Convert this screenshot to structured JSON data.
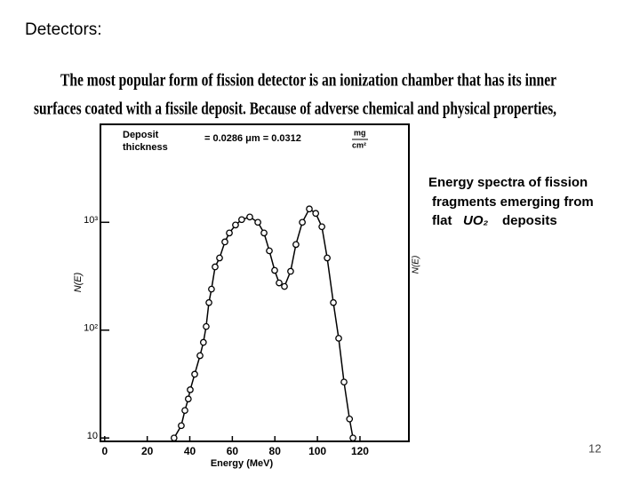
{
  "slide_title": "Detectors:",
  "scanned_text": [
    "The most popular form of fission detector is an ionization chamber that has its inner",
    "surfaces coated with a fissile deposit. Because of adverse chemical and physical properties,"
  ],
  "caption": {
    "lines": [
      "Energy spectra of fission",
      "fragments emerging from"
    ],
    "last_line_start": "flat",
    "formula": "UO₂",
    "last_line_end": "deposits"
  },
  "page_number": "12",
  "chart_data": {
    "type": "line",
    "x_label": "Energy (MeV)",
    "y_label": "N(E)",
    "annotation": [
      "Deposit",
      "thickness",
      "= 0.0286 μm = 0.0312",
      "mg",
      "cm²"
    ],
    "x": [
      32.6,
      36,
      37.7,
      39.3,
      40.2,
      42.3,
      44.8,
      46.4,
      47.7,
      49,
      50.2,
      51.9,
      54,
      56.5,
      58.6,
      61.5,
      64.4,
      68.2,
      72,
      74.9,
      77.4,
      79.9,
      82,
      84.5,
      87.4,
      89.9,
      92.9,
      96.2,
      99.2,
      102.1,
      104.6,
      107.5,
      110,
      112.5,
      115.1,
      116.7
    ],
    "series": [
      {
        "color": "#000000",
        "values": [
          10,
          13,
          18,
          23,
          28,
          39,
          58,
          77,
          108,
          180,
          240,
          386,
          467,
          658,
          796,
          944,
          1059,
          1120,
          1000,
          796,
          544,
          358,
          274,
          254,
          351,
          622,
          1000,
          1330,
          1210,
          910,
          467,
          180,
          84,
          33,
          15,
          10
        ]
      }
    ],
    "xlim": [
      -2,
      143
    ],
    "ylim": [
      9.3,
      8100
    ],
    "log_y": true,
    "xticks": [
      0,
      20,
      40,
      60,
      80,
      100,
      120
    ],
    "yticks": [
      10,
      {
        "value": 100,
        "label": "10²"
      },
      {
        "value": 1000,
        "label": "10³"
      }
    ]
  }
}
